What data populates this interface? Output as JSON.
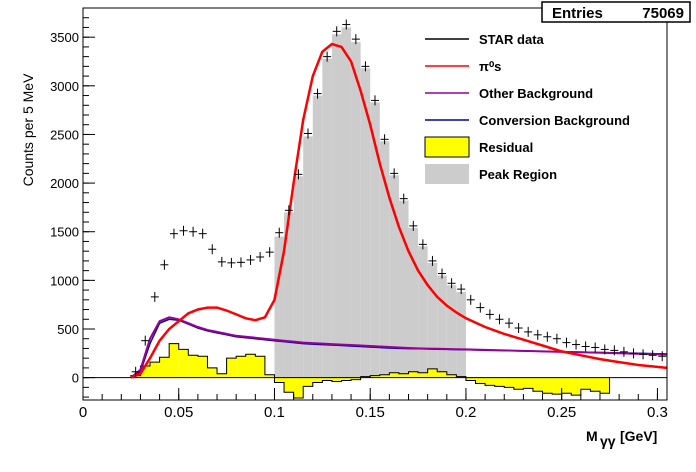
{
  "stats_box": {
    "label": "Entries",
    "value": "75069"
  },
  "chart_data": {
    "type": "histogram",
    "xlabel": "M",
    "xlabel_sub": "γγ",
    "xlabel_unit": "[GeV]",
    "ylabel": "Counts per 5 MeV",
    "xlim": [
      0,
      0.305
    ],
    "ylim": [
      -230,
      3800
    ],
    "x_ticks": [
      0,
      0.05,
      0.1,
      0.15,
      0.2,
      0.25,
      0.3
    ],
    "x_tick_labels": [
      "0",
      "0.05",
      "0.1",
      "0.15",
      "0.2",
      "0.25",
      "0.3"
    ],
    "y_ticks": [
      0,
      500,
      1000,
      1500,
      2000,
      2500,
      3000,
      3500
    ],
    "y_tick_labels": [
      "0",
      "500",
      "1000",
      "1500",
      "2000",
      "2500",
      "3000",
      "3500"
    ],
    "legend_position": "top-right",
    "legend": [
      {
        "key": "data",
        "label": "STAR data",
        "color": "#000000",
        "style": "line"
      },
      {
        "key": "pi0",
        "label": "π⁰s",
        "color": "#ff0000",
        "style": "line"
      },
      {
        "key": "other",
        "label": "Other Background",
        "color": "#990099",
        "style": "line"
      },
      {
        "key": "conv",
        "label": "Conversion Background",
        "color": "#000099",
        "style": "line"
      },
      {
        "key": "residual",
        "label": "Residual",
        "color": "#ffff00",
        "style": "box"
      },
      {
        "key": "peak",
        "label": "Peak Region",
        "color": "#cccccc",
        "style": "fill"
      }
    ],
    "bin_width": 0.005,
    "data_points": {
      "x": [
        0.0275,
        0.0325,
        0.0375,
        0.0425,
        0.0475,
        0.0525,
        0.0575,
        0.0625,
        0.0675,
        0.0725,
        0.0775,
        0.0825,
        0.0875,
        0.0925,
        0.0975,
        0.1025,
        0.1075,
        0.1125,
        0.1175,
        0.1225,
        0.1275,
        0.1325,
        0.1375,
        0.1425,
        0.1475,
        0.1525,
        0.1575,
        0.1625,
        0.1675,
        0.1725,
        0.1775,
        0.1825,
        0.1875,
        0.1925,
        0.1975,
        0.2025,
        0.2075,
        0.2125,
        0.2175,
        0.2225,
        0.2275,
        0.2325,
        0.2375,
        0.2425,
        0.2475,
        0.2525,
        0.2575,
        0.2625,
        0.2675,
        0.2725,
        0.2775,
        0.2825,
        0.2875,
        0.2925,
        0.2975,
        0.3025
      ],
      "y": [
        60,
        380,
        830,
        1160,
        1480,
        1510,
        1500,
        1480,
        1320,
        1190,
        1180,
        1185,
        1210,
        1240,
        1290,
        1490,
        1720,
        2090,
        2510,
        2920,
        3300,
        3560,
        3630,
        3480,
        3200,
        2850,
        2450,
        2100,
        1840,
        1560,
        1370,
        1200,
        1070,
        970,
        910,
        800,
        720,
        650,
        600,
        560,
        510,
        470,
        440,
        420,
        400,
        360,
        340,
        320,
        310,
        290,
        280,
        265,
        250,
        240,
        230,
        220
      ]
    },
    "peak_region": {
      "x_range": [
        0.1,
        0.2
      ],
      "bin_values": [
        1450,
        1700,
        2070,
        2480,
        2900,
        3280,
        3530,
        3600,
        3450,
        3180,
        2830,
        2430,
        2080,
        1820,
        1540,
        1350,
        1180,
        1050,
        950,
        880
      ]
    },
    "residual_bins": {
      "x_start": 0.025,
      "values": [
        20,
        120,
        160,
        210,
        350,
        290,
        230,
        220,
        100,
        40,
        200,
        220,
        240,
        220,
        30,
        -50,
        -150,
        -210,
        -90,
        -50,
        -30,
        -40,
        -30,
        -20,
        10,
        20,
        30,
        50,
        40,
        60,
        50,
        90,
        60,
        30,
        10,
        -30,
        -60,
        -80,
        -90,
        -100,
        -120,
        -110,
        -140,
        -160,
        -170,
        -160,
        -180,
        -120,
        -140,
        -160
      ]
    },
    "curves": {
      "x": [
        0.025,
        0.03,
        0.035,
        0.04,
        0.045,
        0.05,
        0.055,
        0.06,
        0.065,
        0.07,
        0.075,
        0.08,
        0.085,
        0.09,
        0.095,
        0.1,
        0.105,
        0.11,
        0.115,
        0.12,
        0.125,
        0.13,
        0.135,
        0.14,
        0.145,
        0.15,
        0.155,
        0.16,
        0.165,
        0.17,
        0.175,
        0.18,
        0.185,
        0.19,
        0.195,
        0.2,
        0.21,
        0.22,
        0.23,
        0.24,
        0.25,
        0.26,
        0.27,
        0.28,
        0.29,
        0.3,
        0.305
      ],
      "pi0": [
        0,
        40,
        200,
        380,
        500,
        580,
        660,
        700,
        720,
        720,
        690,
        650,
        610,
        590,
        620,
        800,
        1300,
        2000,
        2650,
        3100,
        3350,
        3430,
        3400,
        3250,
        2950,
        2600,
        2200,
        1850,
        1550,
        1300,
        1100,
        950,
        830,
        740,
        670,
        610,
        520,
        450,
        390,
        330,
        270,
        230,
        190,
        160,
        130,
        110,
        100
      ],
      "other": [
        0,
        80,
        400,
        580,
        620,
        600,
        560,
        520,
        490,
        470,
        450,
        430,
        420,
        410,
        400,
        390,
        380,
        370,
        360,
        355,
        350,
        345,
        340,
        335,
        330,
        325,
        320,
        315,
        310,
        305,
        300,
        298,
        296,
        294,
        292,
        290,
        285,
        280,
        275,
        270,
        265,
        260,
        255,
        250,
        245,
        240,
        238
      ],
      "conv": [
        0,
        60,
        350,
        560,
        600,
        590,
        550,
        510,
        480,
        460,
        440,
        420,
        410,
        400,
        390,
        380,
        370,
        360,
        350,
        345,
        340,
        335,
        330,
        325,
        320,
        315,
        310,
        305,
        300,
        298,
        296,
        294,
        292,
        290,
        288,
        286,
        282,
        278,
        274,
        270,
        266,
        262,
        258,
        254,
        250,
        246,
        244
      ]
    }
  }
}
